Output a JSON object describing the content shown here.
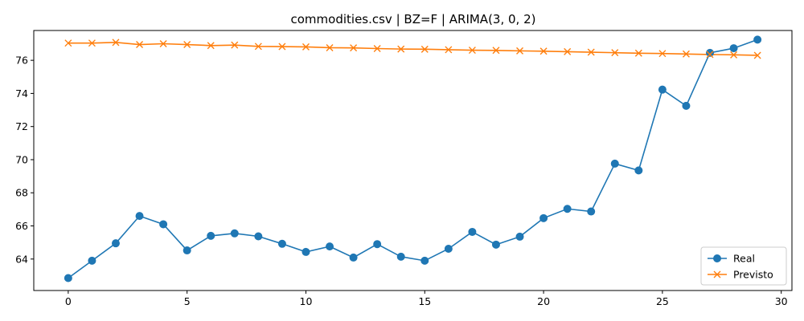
{
  "chart_data": {
    "type": "line",
    "title": "commodities.csv | BZ=F | ARIMA(3, 0, 2)",
    "xlabel": "",
    "ylabel": "",
    "xlim": [
      -1.45,
      30.45
    ],
    "ylim": [
      62.1,
      77.8
    ],
    "xticks": [
      0,
      5,
      10,
      15,
      20,
      25,
      30
    ],
    "yticks": [
      64,
      66,
      68,
      70,
      72,
      74,
      76
    ],
    "grid": false,
    "legend_position": "lower-right",
    "x": [
      0,
      1,
      2,
      3,
      4,
      5,
      6,
      7,
      8,
      9,
      10,
      11,
      12,
      13,
      14,
      15,
      16,
      17,
      18,
      19,
      20,
      21,
      22,
      23,
      24,
      25,
      26,
      27,
      28,
      29
    ],
    "series": [
      {
        "name": "Real",
        "color": "#1f77b4",
        "marker": "circle",
        "values": [
          62.85,
          63.9,
          64.95,
          66.6,
          66.1,
          64.52,
          65.4,
          65.55,
          65.37,
          64.92,
          64.43,
          64.76,
          64.09,
          64.9,
          64.14,
          63.9,
          64.62,
          65.64,
          64.87,
          65.35,
          66.47,
          67.03,
          66.87,
          69.76,
          69.35,
          74.23,
          73.25,
          76.45,
          76.73,
          77.25
        ]
      },
      {
        "name": "Previsto",
        "color": "#ff7f0e",
        "marker": "x",
        "values": [
          77.04,
          77.04,
          77.08,
          76.95,
          77.0,
          76.95,
          76.89,
          76.92,
          76.84,
          76.83,
          76.81,
          76.76,
          76.75,
          76.71,
          76.68,
          76.67,
          76.64,
          76.61,
          76.6,
          76.57,
          76.55,
          76.52,
          76.49,
          76.46,
          76.43,
          76.41,
          76.38,
          76.35,
          76.33,
          76.3
        ]
      }
    ]
  }
}
